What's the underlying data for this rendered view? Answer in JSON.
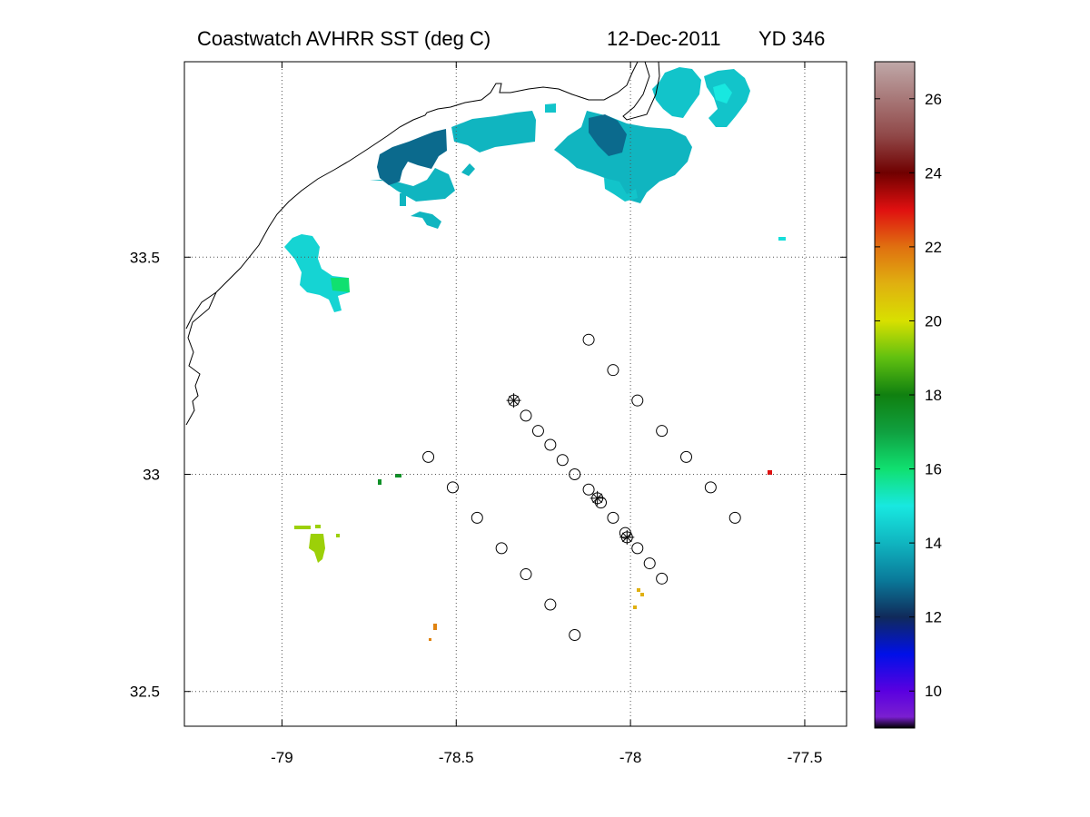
{
  "header": {
    "source": "Coastwatch   AVHRR   SST  (deg C)",
    "date": "12-Dec-2011",
    "yearday": "YD 346"
  },
  "map": {
    "lon_range": [
      -79.28,
      -77.38
    ],
    "lat_range": [
      32.42,
      33.95
    ],
    "x_ticks": [
      {
        "value": -79.0,
        "label": "-79"
      },
      {
        "value": -78.5,
        "label": "-78.5"
      },
      {
        "value": -78.0,
        "label": "-78"
      },
      {
        "value": -77.5,
        "label": "-77.5"
      }
    ],
    "y_ticks": [
      {
        "value": 33.5,
        "label": "33.5"
      },
      {
        "value": 33.0,
        "label": "33"
      },
      {
        "value": 32.5,
        "label": "32.5"
      }
    ],
    "grid": true,
    "grid_style": "dotted"
  },
  "colorbar": {
    "range": [
      9,
      27
    ],
    "ticks": [
      10,
      12,
      14,
      16,
      18,
      20,
      22,
      24,
      26
    ],
    "colormap_stops": [
      {
        "v": 9.0,
        "c": "#000000"
      },
      {
        "v": 9.3,
        "c": "#7a1fd0"
      },
      {
        "v": 10.0,
        "c": "#5a00e0"
      },
      {
        "v": 11.0,
        "c": "#0010e8"
      },
      {
        "v": 12.0,
        "c": "#102a5a"
      },
      {
        "v": 13.0,
        "c": "#0a7a9a"
      },
      {
        "v": 14.0,
        "c": "#10b5c0"
      },
      {
        "v": 15.0,
        "c": "#18e8e0"
      },
      {
        "v": 16.0,
        "c": "#10e070"
      },
      {
        "v": 17.0,
        "c": "#10a040"
      },
      {
        "v": 18.0,
        "c": "#108010"
      },
      {
        "v": 19.0,
        "c": "#60c010"
      },
      {
        "v": 20.0,
        "c": "#d8e000"
      },
      {
        "v": 21.0,
        "c": "#e0b010"
      },
      {
        "v": 22.0,
        "c": "#e07010"
      },
      {
        "v": 23.0,
        "c": "#e01010"
      },
      {
        "v": 24.0,
        "c": "#700000"
      },
      {
        "v": 25.0,
        "c": "#904848"
      },
      {
        "v": 27.0,
        "c": "#bfa8a8"
      }
    ]
  },
  "sst_patches": [
    {
      "region": "coastal-main",
      "value": 14.0
    },
    {
      "region": "coastal-east",
      "value": 14.3
    },
    {
      "region": "coastal-cold",
      "value": 12.8
    },
    {
      "region": "northeast-warm",
      "value": 15.0
    },
    {
      "region": "west-patch",
      "value": 14.6
    },
    {
      "region": "west-patch-green",
      "value": 16.0
    },
    {
      "region": "small-east",
      "value": 14.8
    },
    {
      "region": "lime-patch",
      "value": 19.5
    },
    {
      "region": "green-dots",
      "value": 17.5
    },
    {
      "region": "orange-dots",
      "value": 21.7
    },
    {
      "region": "yellow-dots",
      "value": 21.0
    },
    {
      "region": "red-dot",
      "value": 23.0
    }
  ],
  "stations": [
    {
      "lon": -78.12,
      "lat": 33.31
    },
    {
      "lon": -78.05,
      "lat": 33.24
    },
    {
      "lon": -77.98,
      "lat": 33.17
    },
    {
      "lon": -77.91,
      "lat": 33.1
    },
    {
      "lon": -77.84,
      "lat": 33.04
    },
    {
      "lon": -77.77,
      "lat": 32.97
    },
    {
      "lon": -77.7,
      "lat": 32.9
    },
    {
      "lon": -78.335,
      "lat": 33.17,
      "marked": true
    },
    {
      "lon": -78.3,
      "lat": 33.135
    },
    {
      "lon": -78.265,
      "lat": 33.1
    },
    {
      "lon": -78.23,
      "lat": 33.068
    },
    {
      "lon": -78.195,
      "lat": 33.033
    },
    {
      "lon": -78.16,
      "lat": 33.0
    },
    {
      "lon": -78.12,
      "lat": 32.965
    },
    {
      "lon": -78.095,
      "lat": 32.945,
      "marked": true
    },
    {
      "lon": -78.085,
      "lat": 32.935
    },
    {
      "lon": -78.05,
      "lat": 32.9
    },
    {
      "lon": -78.015,
      "lat": 32.865
    },
    {
      "lon": -78.01,
      "lat": 32.855,
      "marked": true
    },
    {
      "lon": -77.98,
      "lat": 32.83
    },
    {
      "lon": -77.945,
      "lat": 32.795
    },
    {
      "lon": -77.91,
      "lat": 32.76
    },
    {
      "lon": -78.58,
      "lat": 33.04
    },
    {
      "lon": -78.51,
      "lat": 32.97
    },
    {
      "lon": -78.44,
      "lat": 32.9
    },
    {
      "lon": -78.37,
      "lat": 32.83
    },
    {
      "lon": -78.3,
      "lat": 32.77
    },
    {
      "lon": -78.23,
      "lat": 32.7
    },
    {
      "lon": -78.16,
      "lat": 32.63
    }
  ]
}
